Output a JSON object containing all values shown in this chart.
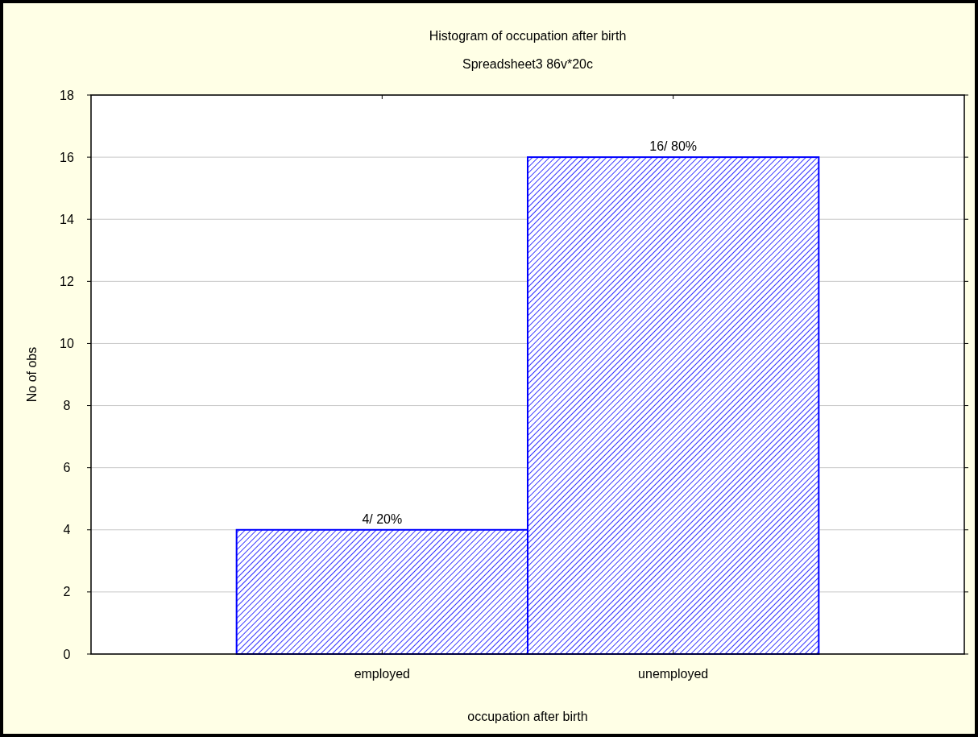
{
  "chart_data": {
    "type": "bar",
    "title": "Histogram of occupation after birth",
    "subtitle": "Spreadsheet3 86v*20c",
    "xlabel": "occupation after birth",
    "ylabel": "No of obs",
    "categories": [
      "employed",
      "unemployed"
    ],
    "values": [
      4,
      16
    ],
    "color": "#0000ff",
    "value_labels": [
      "4/ 20%",
      "16/ 80%"
    ],
    "ylim": [
      0,
      18
    ],
    "yticks": [
      0,
      2,
      4,
      6,
      8,
      10,
      12,
      14,
      16,
      18
    ],
    "grid": "y"
  }
}
